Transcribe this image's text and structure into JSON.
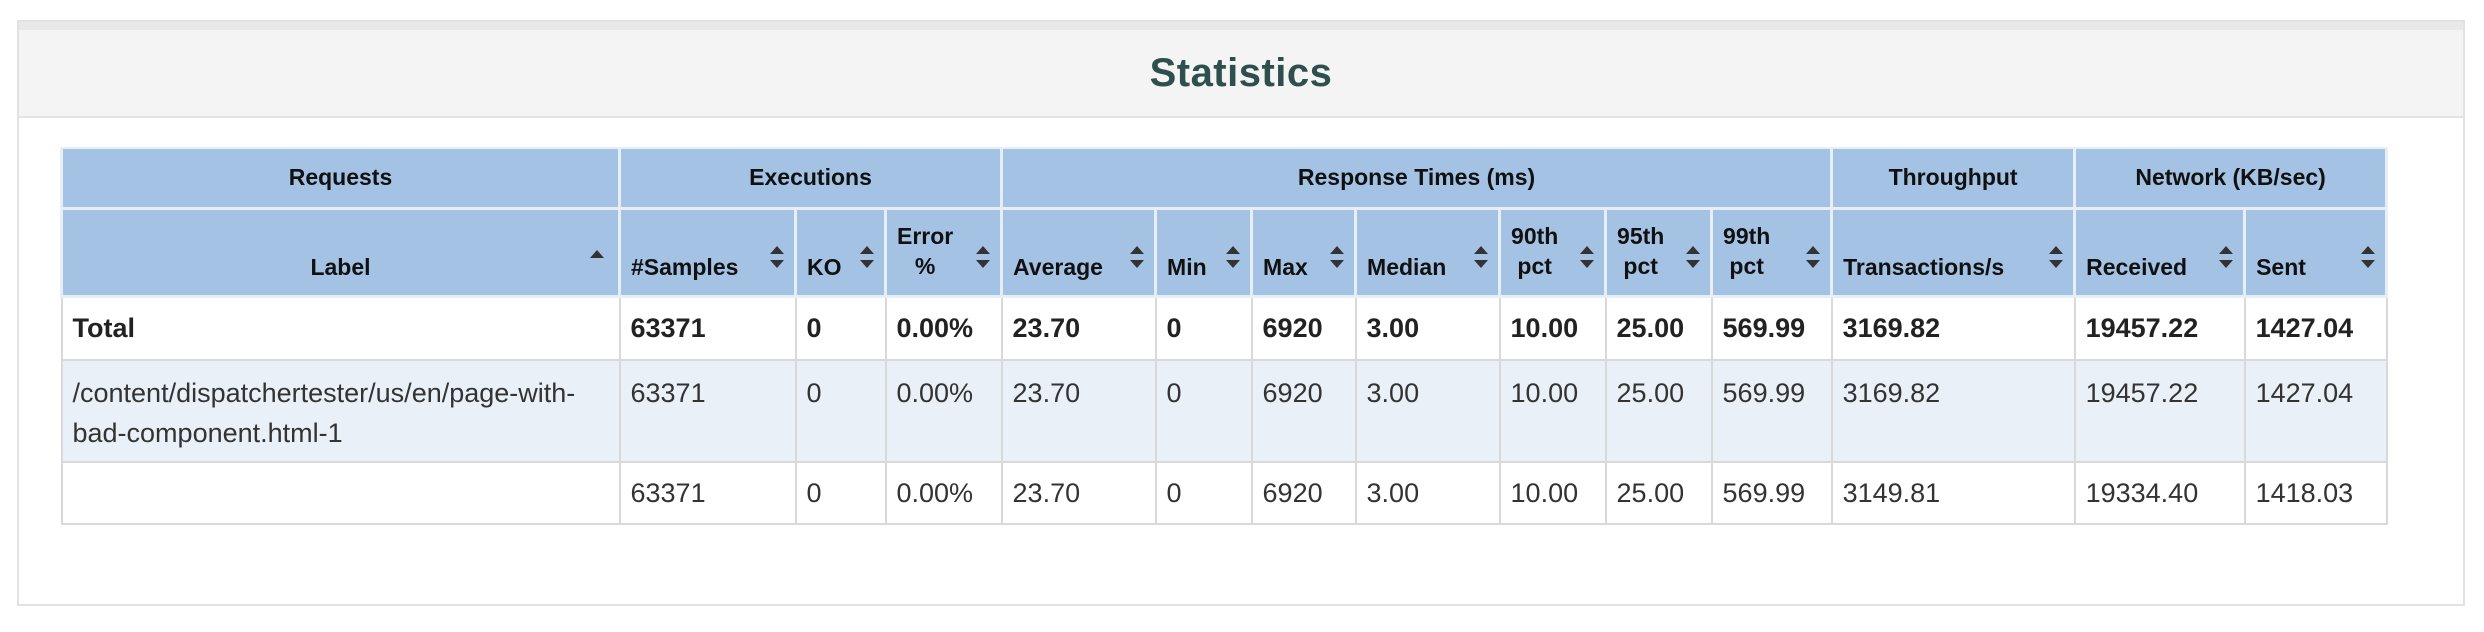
{
  "title": "Statistics",
  "groups": {
    "requests": "Requests",
    "executions": "Executions",
    "response_times": "Response Times (ms)",
    "throughput": "Throughput",
    "network": "Network (KB/sec)"
  },
  "columns": {
    "label": "Label",
    "samples": "#Samples",
    "ko": "KO",
    "error_line1": "Error",
    "error_line2": "%",
    "average": "Average",
    "min": "Min",
    "max": "Max",
    "median": "Median",
    "p90_line1": "90th",
    "p90_line2": "pct",
    "p95_line1": "95th",
    "p95_line2": "pct",
    "p99_line1": "99th",
    "p99_line2": "pct",
    "transactions": "Transactions/s",
    "received": "Received",
    "sent": "Sent"
  },
  "rows": [
    {
      "label": "Total",
      "samples": "63371",
      "ko": "0",
      "error": "0.00%",
      "average": "23.70",
      "min": "0",
      "max": "6920",
      "median": "3.00",
      "p90": "10.00",
      "p95": "25.00",
      "p99": "569.99",
      "transactions": "3169.82",
      "received": "19457.22",
      "sent": "1427.04"
    },
    {
      "label": "/content/dispatchertester/us/en/page-with-bad-component.html-1",
      "samples": "63371",
      "ko": "0",
      "error": "0.00%",
      "average": "23.70",
      "min": "0",
      "max": "6920",
      "median": "3.00",
      "p90": "10.00",
      "p95": "25.00",
      "p99": "569.99",
      "transactions": "3169.82",
      "received": "19457.22",
      "sent": "1427.04"
    },
    {
      "label": "",
      "samples": "63371",
      "ko": "0",
      "error": "0.00%",
      "average": "23.70",
      "min": "0",
      "max": "6920",
      "median": "3.00",
      "p90": "10.00",
      "p95": "25.00",
      "p99": "569.99",
      "transactions": "3149.81",
      "received": "19334.40",
      "sent": "1418.03"
    }
  ],
  "sort": {
    "column": "label",
    "direction": "ascending"
  },
  "icons": {
    "sort_ascending": "sort-ascending-icon",
    "sort_both": "sort-both-icon"
  },
  "colors": {
    "header_bg": "#a4c2e4",
    "alt_row_bg": "#e9f0f8",
    "title_color": "#2f4f4f"
  }
}
